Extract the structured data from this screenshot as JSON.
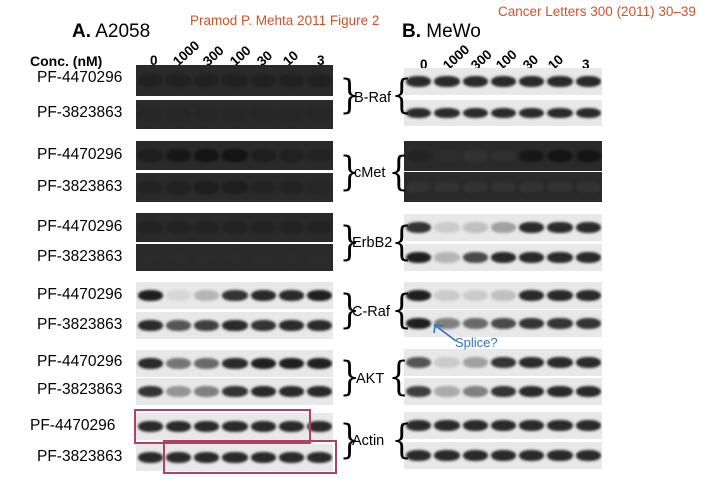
{
  "header": {
    "annotation_left": "Pramod P. Mehta 2011  Figure 2",
    "annotation_right": "Cancer Letters 300 (2011) 30–39"
  },
  "panel_a": {
    "letter": "A.",
    "cell_line": "A2058",
    "conc_label": "Conc. (nM)",
    "concentrations": [
      "0",
      "1000",
      "300",
      "100",
      "30",
      "10",
      "3"
    ]
  },
  "panel_b": {
    "letter": "B.",
    "cell_line": "MeWo",
    "concentrations": [
      "0",
      "1000",
      "300",
      "100",
      "30",
      "10",
      "3"
    ]
  },
  "compounds": [
    "PF-4470296",
    "PF-3823863"
  ],
  "proteins": [
    "B-Raf",
    "cMet",
    "ErbB2",
    "C-Raf",
    "AKT",
    "Actin"
  ],
  "splice_label": "Splice?",
  "colors": {
    "annotation": "#d2502a",
    "splice_arrow": "#2f74c0",
    "highlight_box": "#b04165"
  }
}
